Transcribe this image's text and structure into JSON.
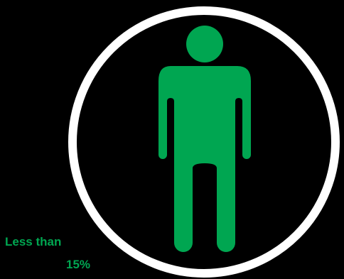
{
  "figure": {
    "icon": "person-icon",
    "frame": "ring",
    "colors": {
      "background": "#000000",
      "ring": "#ffffff",
      "figure": "#00a651",
      "text": "#00a651"
    }
  },
  "caption": {
    "line1": "Less than",
    "line2": "15%"
  }
}
